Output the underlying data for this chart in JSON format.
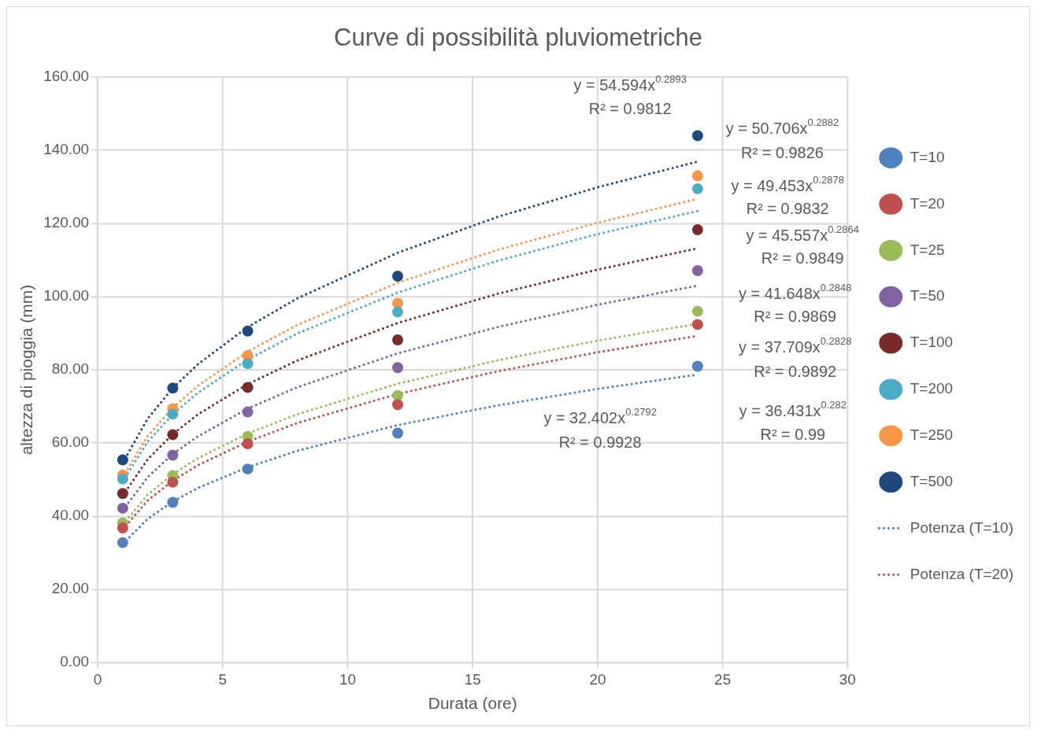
{
  "chart_data": {
    "type": "scatter",
    "title": "Curve di possibilità pluviometriche",
    "xlabel": "Durata (ore)",
    "ylabel": "altezza di pioggia (mm)",
    "xlim": [
      0,
      30
    ],
    "xticks": [
      0,
      5,
      10,
      15,
      20,
      25,
      30
    ],
    "ylim": [
      0,
      160
    ],
    "yticks": [
      {
        "value": 0,
        "label": "0.00"
      },
      {
        "value": 20,
        "label": "20.00"
      },
      {
        "value": 40,
        "label": "40.00"
      },
      {
        "value": 60,
        "label": "60.00"
      },
      {
        "value": 80,
        "label": "80.00"
      },
      {
        "value": 100,
        "label": "100.00"
      },
      {
        "value": 120,
        "label": "120.00"
      },
      {
        "value": 140,
        "label": "140.00"
      },
      {
        "value": 160,
        "label": "160.00"
      }
    ],
    "grid": true,
    "legend": "right",
    "marker": "circle",
    "x": [
      1,
      3,
      6,
      12,
      24
    ],
    "series": [
      {
        "name": "T=10",
        "color": "#4f81bd",
        "values": [
          32.8,
          43.8,
          52.9,
          62.7,
          81.0
        ]
      },
      {
        "name": "T=20",
        "color": "#c0504d",
        "values": [
          36.8,
          49.3,
          59.8,
          70.5,
          92.4
        ]
      },
      {
        "name": "T=25",
        "color": "#9bbb59",
        "values": [
          38.2,
          51.1,
          61.8,
          73.0,
          96.0
        ]
      },
      {
        "name": "T=50",
        "color": "#8064a2",
        "values": [
          42.2,
          56.7,
          68.5,
          80.6,
          107.1
        ]
      },
      {
        "name": "T=100",
        "color": "#772c2a",
        "values": [
          46.2,
          62.3,
          75.2,
          88.2,
          118.3
        ]
      },
      {
        "name": "T=200",
        "color": "#4bacc6",
        "values": [
          50.2,
          67.9,
          81.7,
          95.8,
          129.5
        ]
      },
      {
        "name": "T=250",
        "color": "#f79646",
        "values": [
          51.3,
          69.4,
          83.9,
          98.2,
          133.0
        ]
      },
      {
        "name": "T=500",
        "color": "#1f497d",
        "values": [
          55.4,
          75.0,
          90.6,
          105.6,
          144.0
        ]
      },
      {
        "name": "Potenza (T=10)",
        "type": "line",
        "line_style": "dotted",
        "marker": "none",
        "color": "#4f81bd",
        "x": [
          1,
          2,
          3,
          4,
          6,
          8,
          12,
          16,
          20,
          24
        ],
        "values": [
          32.4,
          39.3,
          44.0,
          47.7,
          53.4,
          57.9,
          64.9,
          70.3,
          74.8,
          78.7
        ]
      },
      {
        "name": "Potenza (T=20)",
        "type": "line",
        "line_style": "dotted",
        "marker": "none",
        "color": "#c0504d",
        "x": [
          1,
          2,
          3,
          4,
          6,
          8,
          12,
          16,
          20,
          24
        ],
        "values": [
          36.4,
          44.3,
          49.7,
          53.9,
          60.4,
          65.5,
          73.4,
          79.6,
          84.8,
          89.3
        ]
      },
      {
        "type": "line",
        "line_style": "dotted",
        "marker": "none",
        "color": "#9bbb59",
        "x": [
          1,
          2,
          3,
          4,
          6,
          8,
          12,
          16,
          20,
          24
        ],
        "values": [
          37.7,
          45.9,
          51.5,
          55.8,
          62.6,
          67.9,
          76.2,
          82.6,
          88.0,
          92.6
        ]
      },
      {
        "type": "line",
        "line_style": "dotted",
        "marker": "none",
        "color": "#8064a2",
        "x": [
          1,
          2,
          3,
          4,
          6,
          8,
          12,
          16,
          20,
          24
        ],
        "values": [
          41.6,
          50.7,
          57.0,
          61.8,
          69.4,
          75.3,
          84.5,
          91.7,
          97.8,
          103.0
        ]
      },
      {
        "type": "line",
        "line_style": "dotted",
        "marker": "none",
        "color": "#772c2a",
        "x": [
          1,
          2,
          3,
          4,
          6,
          8,
          12,
          16,
          20,
          24
        ],
        "values": [
          45.6,
          55.6,
          62.4,
          67.8,
          76.1,
          82.6,
          92.8,
          100.8,
          107.4,
          113.2
        ]
      },
      {
        "type": "line",
        "line_style": "dotted",
        "marker": "none",
        "color": "#4bacc6",
        "x": [
          1,
          2,
          3,
          4,
          6,
          8,
          12,
          16,
          20,
          24
        ],
        "values": [
          49.5,
          60.4,
          67.8,
          73.7,
          82.8,
          90.0,
          101.1,
          109.8,
          117.1,
          123.4
        ]
      },
      {
        "type": "line",
        "line_style": "dotted",
        "marker": "none",
        "color": "#f79646",
        "x": [
          1,
          2,
          3,
          4,
          6,
          8,
          12,
          16,
          20,
          24
        ],
        "values": [
          50.7,
          61.9,
          69.6,
          75.6,
          85.0,
          92.3,
          103.8,
          112.8,
          120.2,
          126.7
        ]
      },
      {
        "type": "line",
        "line_style": "dotted",
        "marker": "none",
        "color": "#1f497d",
        "x": [
          1,
          2,
          3,
          4,
          6,
          8,
          12,
          16,
          20,
          24
        ],
        "values": [
          54.6,
          66.7,
          75.0,
          81.5,
          91.7,
          99.6,
          112.0,
          121.8,
          129.9,
          136.9
        ]
      }
    ],
    "annotations": [
      "y = 54.594x$^{0.2893}$",
      "R² = 0.9812",
      "y = 50.706x$^{0.2882}$",
      "R² = 0.9826",
      "y = 49.453x$^{0.2878}$",
      "R² = 0.9832",
      "y = 45.557x$^{0.2864}$",
      "R² = 0.9849",
      "y = 41.648x$^{0.2848}$",
      "R² = 0.9869",
      "y = 37.709x$^{0.2828}$",
      "R² = 0.9892",
      "y = 36.431x$^{0.282}$",
      "R² = 0.99",
      "y = 32.402x$^{0.2792}$",
      "R² = 0.9928"
    ]
  }
}
